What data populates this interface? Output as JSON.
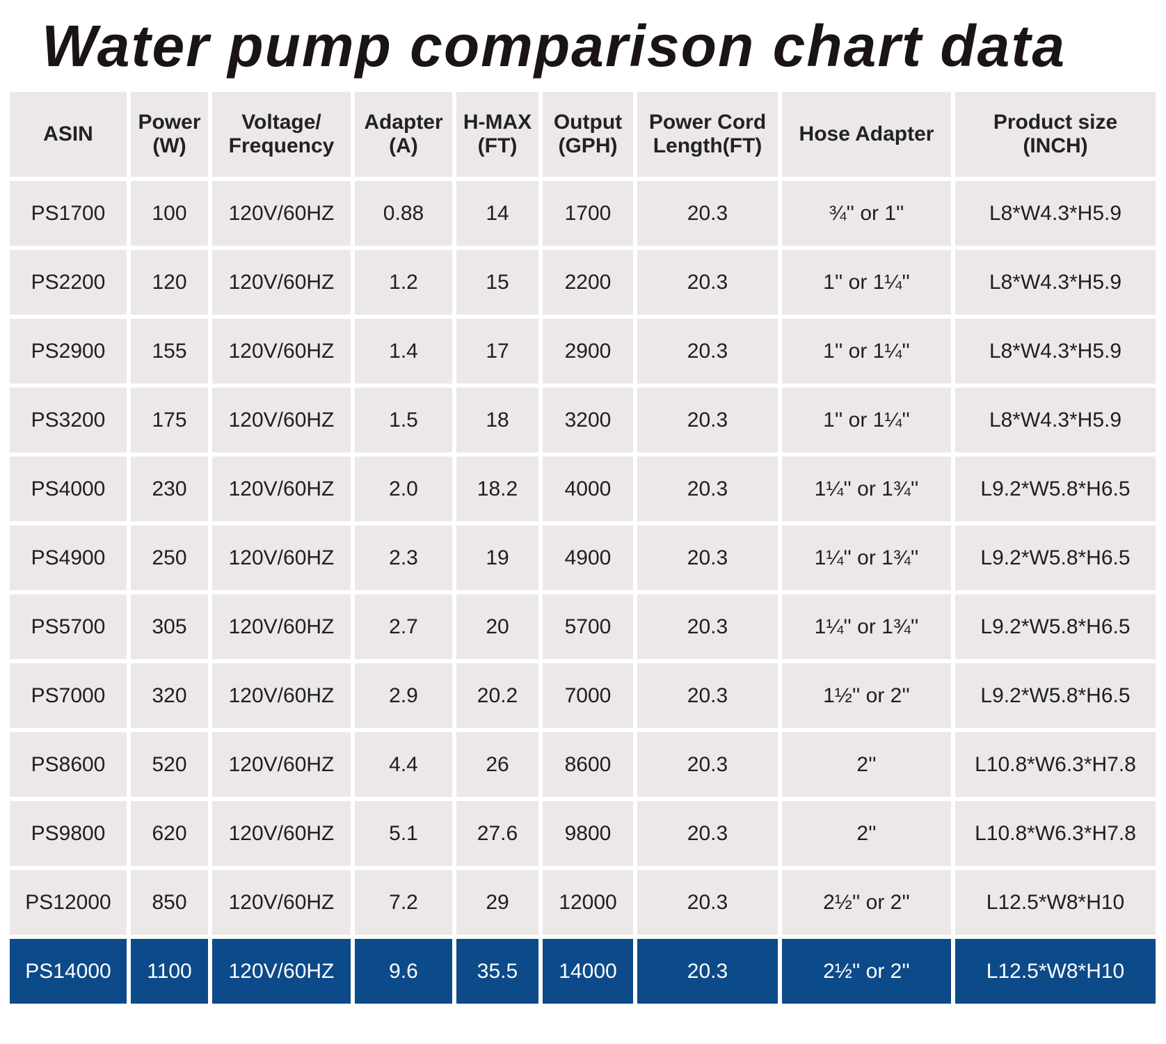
{
  "header": {
    "title": "Water pump comparison chart data"
  },
  "table": {
    "columns": [
      "ASIN",
      "Power\n(W)",
      "Voltage/\nFrequency",
      "Adapter\n(A)",
      "H-MAX\n(FT)",
      "Output\n(GPH)",
      "Power Cord\nLength(FT)",
      "Hose Adapter",
      "Product size\n(INCH)"
    ],
    "rows": [
      [
        "PS1700",
        "100",
        "120V/60HZ",
        "0.88",
        "14",
        "1700",
        "20.3",
        "¾'' or 1''",
        "L8*W4.3*H5.9"
      ],
      [
        "PS2200",
        "120",
        "120V/60HZ",
        "1.2",
        "15",
        "2200",
        "20.3",
        "1'' or 1¼''",
        "L8*W4.3*H5.9"
      ],
      [
        "PS2900",
        "155",
        "120V/60HZ",
        "1.4",
        "17",
        "2900",
        "20.3",
        "1'' or 1¼''",
        "L8*W4.3*H5.9"
      ],
      [
        "PS3200",
        "175",
        "120V/60HZ",
        "1.5",
        "18",
        "3200",
        "20.3",
        "1'' or 1¼''",
        "L8*W4.3*H5.9"
      ],
      [
        "PS4000",
        "230",
        "120V/60HZ",
        "2.0",
        "18.2",
        "4000",
        "20.3",
        "1¼'' or 1¾''",
        "L9.2*W5.8*H6.5"
      ],
      [
        "PS4900",
        "250",
        "120V/60HZ",
        "2.3",
        "19",
        "4900",
        "20.3",
        "1¼'' or 1¾''",
        "L9.2*W5.8*H6.5"
      ],
      [
        "PS5700",
        "305",
        "120V/60HZ",
        "2.7",
        "20",
        "5700",
        "20.3",
        "1¼'' or 1¾''",
        "L9.2*W5.8*H6.5"
      ],
      [
        "PS7000",
        "320",
        "120V/60HZ",
        "2.9",
        "20.2",
        "7000",
        "20.3",
        "1½'' or 2''",
        "L9.2*W5.8*H6.5"
      ],
      [
        "PS8600",
        "520",
        "120V/60HZ",
        "4.4",
        "26",
        "8600",
        "20.3",
        "2''",
        "L10.8*W6.3*H7.8"
      ],
      [
        "PS9800",
        "620",
        "120V/60HZ",
        "5.1",
        "27.6",
        "9800",
        "20.3",
        "2''",
        "L10.8*W6.3*H7.8"
      ],
      [
        "PS12000",
        "850",
        "120V/60HZ",
        "7.2",
        "29",
        "12000",
        "20.3",
        "2½'' or 2''",
        "L12.5*W8*H10"
      ],
      [
        "PS14000",
        "1100",
        "120V/60HZ",
        "9.6",
        "35.5",
        "14000",
        "20.3",
        "2½'' or 2''",
        "L12.5*W8*H10"
      ]
    ]
  }
}
